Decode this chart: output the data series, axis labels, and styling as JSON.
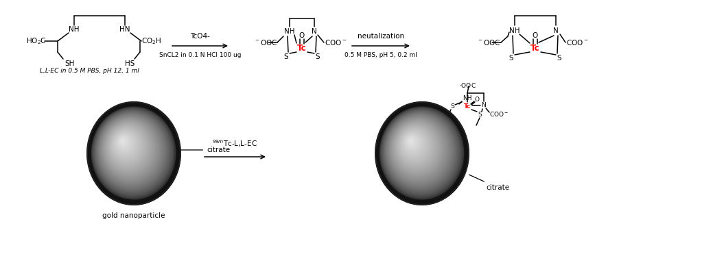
{
  "bg_color": "#ffffff",
  "text_color": "#000000",
  "tc_color": "#ff0000",
  "arrow1_top": "TcO4-",
  "arrow1_bot": "SnCL2 in 0.1 N HCl 100 ug",
  "arrow2_top": "neutalization",
  "arrow2_bot": "0.5 M PBS, pH 5, 0.2 ml",
  "arrow3_label": "$^{99m}$Tc-L,L-EC",
  "label_llec": "L,L-EC in 0.5 M PBS, pH 12, 1 ml",
  "label_gold": "gold nanoparticle",
  "fs": 7.5,
  "fs_small": 6.5,
  "lw": 1.1
}
